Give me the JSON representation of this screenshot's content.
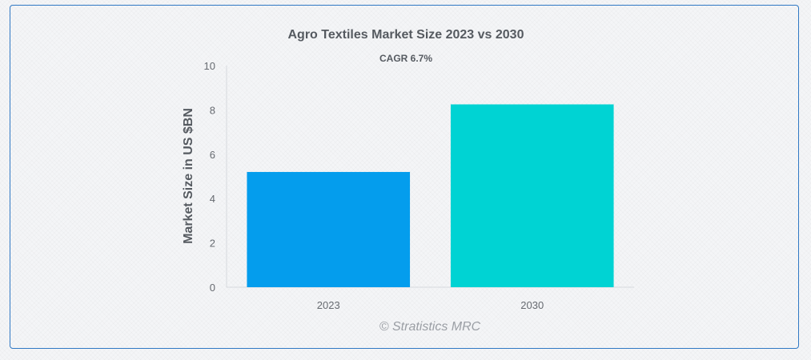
{
  "chart_data": {
    "type": "bar",
    "title": "Agro Textiles Market Size 2023 vs 2030",
    "subtitle": "CAGR 6.7%",
    "xlabel": "",
    "ylabel": "Market Size in US $BN",
    "categories": [
      "2023",
      "2030"
    ],
    "values": [
      5.2,
      8.25
    ],
    "bar_colors": [
      "#049ded",
      "#00d3d3"
    ],
    "ylim": [
      0,
      10
    ],
    "yticks": [
      0,
      2,
      4,
      6,
      8,
      10
    ],
    "grid": false,
    "legend": "none"
  },
  "credit": "© Stratistics MRC",
  "colors": {
    "border": "#2f78c4",
    "axis": "#d6d9dd"
  }
}
